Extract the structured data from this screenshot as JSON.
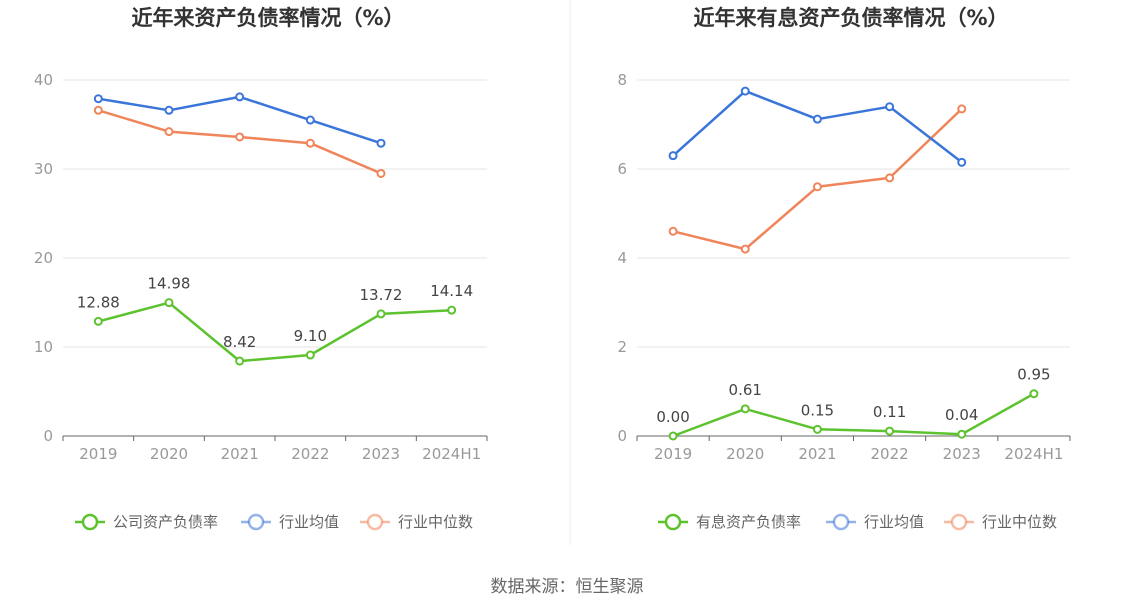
{
  "chart_data": [
    {
      "type": "line",
      "title": "近年来资产负债率情况（%）",
      "categories": [
        "2019",
        "2020",
        "2021",
        "2022",
        "2023",
        "2024H1"
      ],
      "y_ticks": [
        "0",
        "10",
        "20",
        "30",
        "40"
      ],
      "ylim": [
        0,
        40
      ],
      "grid": true,
      "legend_position": "bottom",
      "series": [
        {
          "name": "公司资产负债率",
          "color": "#5cc22d",
          "values": [
            12.88,
            14.98,
            8.42,
            9.1,
            13.72,
            14.14
          ],
          "labels": [
            "12.88",
            "14.98",
            "8.42",
            "9.10",
            "13.72",
            "14.14"
          ]
        },
        {
          "name": "行业均值",
          "color": "#3a75d9",
          "values": [
            37.9,
            36.6,
            38.1,
            35.5,
            32.9,
            null
          ]
        },
        {
          "name": "行业中位数",
          "color": "#f0845a",
          "values": [
            36.6,
            34.2,
            33.6,
            32.9,
            29.5,
            null
          ]
        }
      ]
    },
    {
      "type": "line",
      "title": "近年来有息资产负债率情况（%）",
      "categories": [
        "2019",
        "2020",
        "2021",
        "2022",
        "2023",
        "2024H1"
      ],
      "y_ticks": [
        "0",
        "2",
        "4",
        "6",
        "8"
      ],
      "ylim": [
        0,
        8
      ],
      "grid": true,
      "legend_position": "bottom",
      "series": [
        {
          "name": "有息资产负债率",
          "color": "#5cc22d",
          "values": [
            0.0,
            0.61,
            0.15,
            0.11,
            0.04,
            0.95
          ],
          "labels": [
            "0.00",
            "0.61",
            "0.15",
            "0.11",
            "0.04",
            "0.95"
          ]
        },
        {
          "name": "行业均值",
          "color": "#3a75d9",
          "values": [
            6.3,
            7.75,
            7.12,
            7.4,
            6.15,
            null
          ]
        },
        {
          "name": "行业中位数",
          "color": "#f0845a",
          "values": [
            4.6,
            4.2,
            5.6,
            5.8,
            7.35,
            null
          ]
        }
      ]
    }
  ],
  "source": "数据来源：恒生聚源"
}
